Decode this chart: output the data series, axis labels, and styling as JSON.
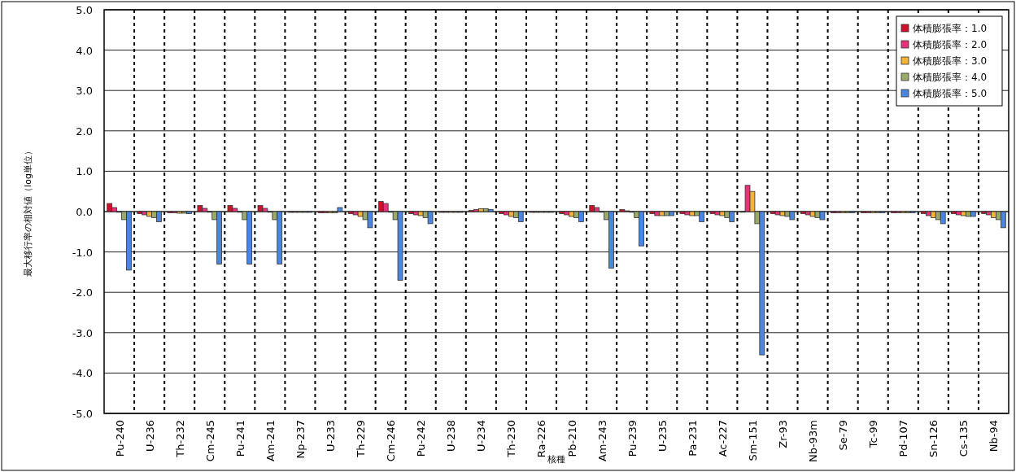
{
  "chart_data": {
    "type": "bar",
    "xlabel": "核種",
    "ylabel": "最大移行率の相対値（log単位）",
    "categories": [
      "Pu-240",
      "U-236",
      "Th-232",
      "Cm-245",
      "Pu-241",
      "Am-241",
      "Np-237",
      "U-233",
      "Th-229",
      "Cm-246",
      "Pu-242",
      "U-238",
      "U-234",
      "Th-230",
      "Ra-226",
      "Pb-210",
      "Am-243",
      "Pu-239",
      "U-235",
      "Pa-231",
      "Ac-227",
      "Sm-151",
      "Zr-93",
      "Nb-93m",
      "Se-79",
      "Tc-99",
      "Pd-107",
      "Sn-126",
      "Cs-135",
      "Nb-94"
    ],
    "series": [
      {
        "name": "体積膨張率：1.0",
        "color": "#d0102a",
        "values": [
          0.2,
          -0.05,
          -0.03,
          0.15,
          0.15,
          0.15,
          -0.02,
          -0.03,
          -0.05,
          0.25,
          -0.05,
          -0.02,
          0.03,
          -0.05,
          -0.02,
          -0.05,
          0.15,
          0.05,
          -0.05,
          -0.05,
          -0.05,
          0.0,
          -0.05,
          -0.05,
          -0.03,
          -0.03,
          -0.03,
          -0.05,
          -0.05,
          -0.05
        ]
      },
      {
        "name": "体積膨張率：2.0",
        "color": "#e8337a",
        "values": [
          0.1,
          -0.08,
          -0.03,
          0.08,
          0.08,
          0.08,
          -0.02,
          -0.03,
          -0.08,
          0.2,
          -0.08,
          -0.02,
          0.05,
          -0.08,
          -0.02,
          -0.08,
          0.1,
          0.02,
          -0.1,
          -0.08,
          -0.08,
          0.65,
          -0.08,
          -0.08,
          -0.03,
          -0.03,
          -0.03,
          -0.1,
          -0.08,
          -0.08
        ]
      },
      {
        "name": "体積膨張率：3.0",
        "color": "#f5b33a",
        "values": [
          0.0,
          -0.12,
          -0.04,
          0.0,
          0.0,
          0.0,
          -0.02,
          -0.03,
          -0.12,
          0.0,
          -0.1,
          -0.02,
          0.07,
          -0.12,
          -0.02,
          -0.12,
          0.0,
          0.0,
          -0.1,
          -0.1,
          -0.1,
          0.5,
          -0.1,
          -0.12,
          -0.03,
          -0.03,
          -0.03,
          -0.15,
          -0.1,
          -0.15
        ]
      },
      {
        "name": "体積膨張率：4.0",
        "color": "#9aaa6a",
        "values": [
          -0.2,
          -0.15,
          -0.04,
          -0.2,
          -0.2,
          -0.2,
          -0.02,
          -0.03,
          -0.2,
          -0.2,
          -0.15,
          -0.02,
          0.07,
          -0.15,
          -0.02,
          -0.15,
          -0.2,
          -0.15,
          -0.1,
          -0.1,
          -0.15,
          -0.3,
          -0.12,
          -0.15,
          -0.03,
          -0.03,
          -0.03,
          -0.2,
          -0.12,
          -0.2
        ]
      },
      {
        "name": "体積膨張率：5.0",
        "color": "#4a86e0",
        "values": [
          -1.45,
          -0.25,
          -0.05,
          -1.3,
          -1.3,
          -1.3,
          -0.02,
          0.1,
          -0.4,
          -1.7,
          -0.3,
          -0.02,
          0.05,
          -0.25,
          -0.02,
          -0.25,
          -1.4,
          -0.85,
          -0.1,
          -0.25,
          -0.25,
          -3.55,
          -0.2,
          -0.2,
          -0.03,
          -0.03,
          -0.03,
          -0.3,
          -0.12,
          -0.4
        ]
      }
    ],
    "ylim": [
      -5,
      5
    ],
    "yticks": [
      {
        "value": -5,
        "label": "-5.0"
      },
      {
        "value": -4,
        "label": "-4.0"
      },
      {
        "value": -3,
        "label": "-3.0"
      },
      {
        "value": -2,
        "label": "-2.0"
      },
      {
        "value": -1,
        "label": "-1.0"
      },
      {
        "value": 0,
        "label": "0.0"
      },
      {
        "value": 1,
        "label": "1.0"
      },
      {
        "value": 2,
        "label": "2.0"
      },
      {
        "value": 3,
        "label": "3.0"
      },
      {
        "value": 4,
        "label": "4.0"
      },
      {
        "value": 5,
        "label": "5.0"
      }
    ],
    "grid": true,
    "legend": "top right"
  }
}
